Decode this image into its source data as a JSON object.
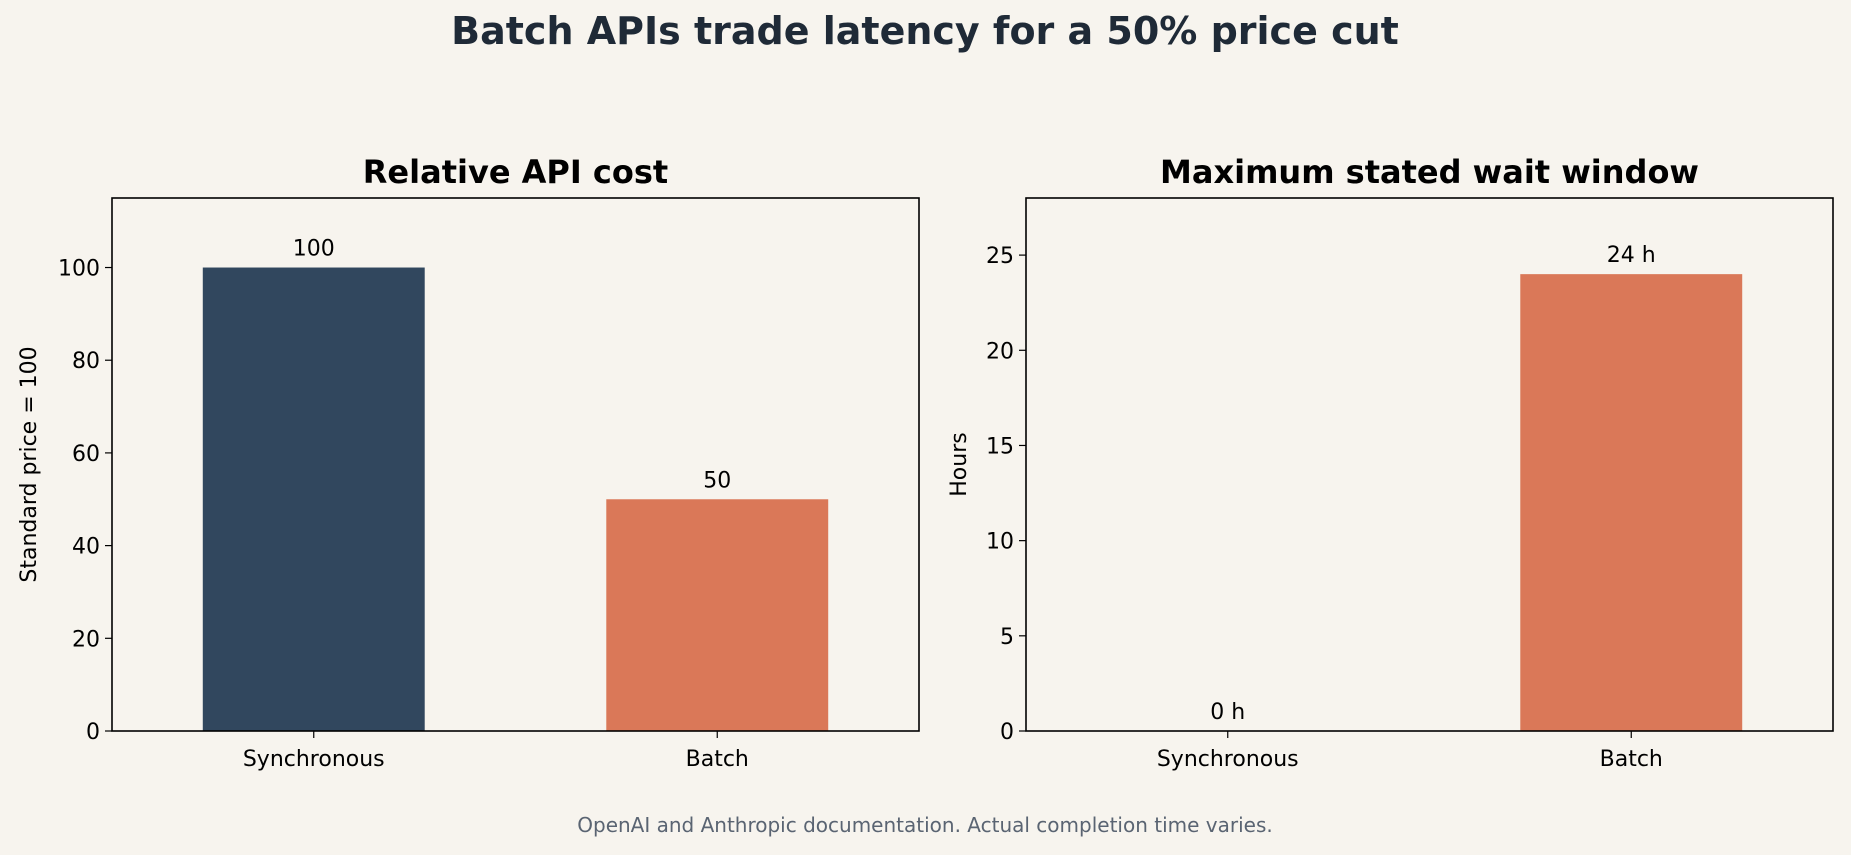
{
  "title": "Batch APIs trade latency for a 50% price cut",
  "footnote": "OpenAI and Anthropic documentation. Actual completion time varies.",
  "colors": {
    "background": "#f7f4ee",
    "title": "#1f2a37",
    "synchronous": "#31475e",
    "batch": "#da7858",
    "footnote": "#5a6472"
  },
  "chart_data": [
    {
      "type": "bar",
      "title": "Relative API cost",
      "xlabel": "",
      "ylabel": "Standard price = 100",
      "categories": [
        "Synchronous",
        "Batch"
      ],
      "values": [
        100,
        50
      ],
      "value_labels": [
        "100",
        "50"
      ],
      "ylim": [
        0,
        115
      ],
      "yticks": [
        0,
        20,
        40,
        60,
        80,
        100
      ],
      "grid": false
    },
    {
      "type": "bar",
      "title": "Maximum stated wait window",
      "xlabel": "",
      "ylabel": "Hours",
      "categories": [
        "Synchronous",
        "Batch"
      ],
      "values": [
        0,
        24
      ],
      "value_labels": [
        "0 h",
        "24 h"
      ],
      "ylim": [
        0,
        28
      ],
      "yticks": [
        0,
        5,
        10,
        15,
        20,
        25
      ],
      "grid": false
    }
  ]
}
